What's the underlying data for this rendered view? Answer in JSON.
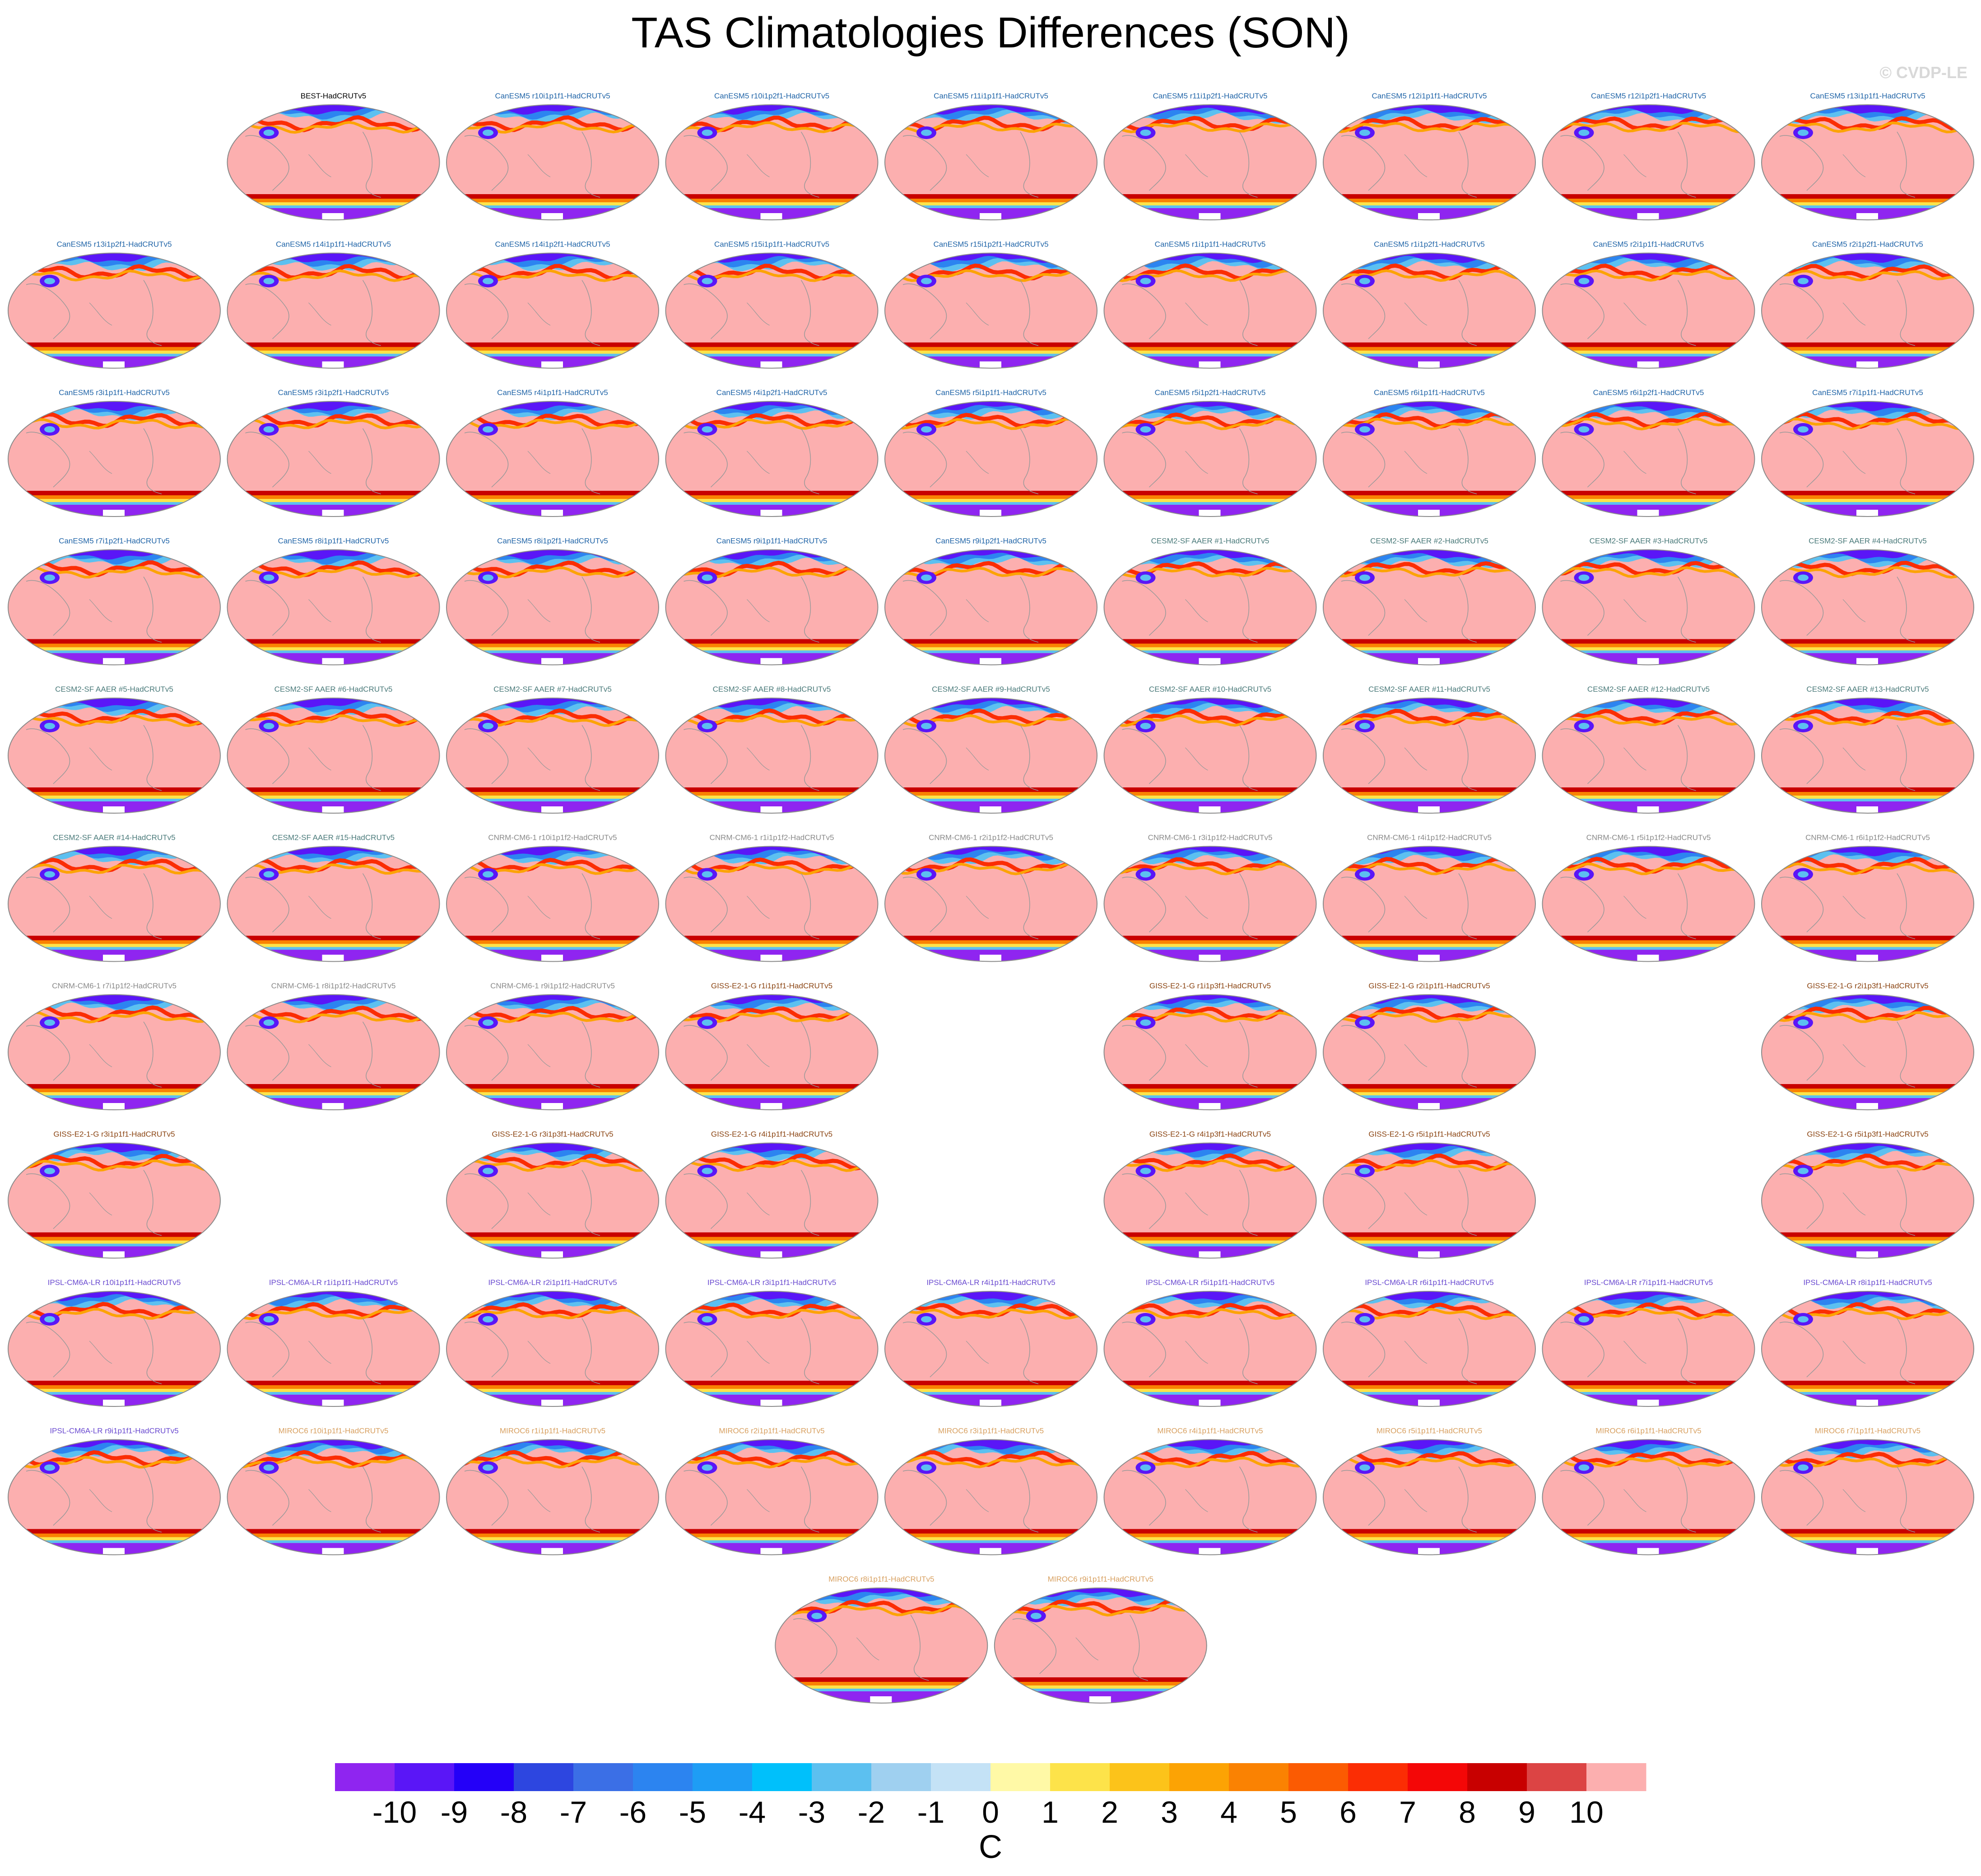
{
  "title": "TAS Climatologies Differences (SON)",
  "watermark": "© CVDP-LE",
  "chart_data": {
    "type": "heatmap",
    "title": "TAS Climatologies Differences (SON)",
    "description_kind": "small-multiple global maps (Robinson-like projection), one per model member minus observations",
    "colorbar": {
      "levels": [
        -10,
        -9,
        -8,
        -7,
        -6,
        -5,
        -4,
        -3,
        -2,
        -1,
        0,
        1,
        2,
        3,
        4,
        5,
        6,
        7,
        8,
        9,
        10
      ],
      "tick_labels": [
        "-10",
        "-9",
        "-8",
        "-7",
        "-6",
        "-5",
        "-4",
        "-3",
        "-2",
        "-1",
        "0",
        "1",
        "2",
        "3",
        "4",
        "5",
        "6",
        "7",
        "8",
        "9",
        "10"
      ],
      "colors": [
        "#8f25f0",
        "#5a16f7",
        "#2400f8",
        "#2d46e0",
        "#3b6fe6",
        "#2c84f0",
        "#1e9df5",
        "#00c0fb",
        "#5cc0f0",
        "#9fd0f0",
        "#c4e2f6",
        "#fff9a6",
        "#fde34a",
        "#fcc31a",
        "#fca304",
        "#fa8202",
        "#fb5b02",
        "#fb2d04",
        "#f40707",
        "#c80000",
        "#dc4444",
        "#fcafaf"
      ],
      "units": "C"
    },
    "panels": [
      {
        "label": "BEST-HadCRUTv5",
        "row": 0,
        "col": 1,
        "group": "BEST",
        "color": "#000000"
      },
      {
        "label": "CanESM5 r10i1p1f1-HadCRUTv5",
        "row": 0,
        "col": 2,
        "group": "CanESM5",
        "color": "#2165a8"
      },
      {
        "label": "CanESM5 r10i1p2f1-HadCRUTv5",
        "row": 0,
        "col": 3,
        "group": "CanESM5",
        "color": "#2165a8"
      },
      {
        "label": "CanESM5 r11i1p1f1-HadCRUTv5",
        "row": 0,
        "col": 4,
        "group": "CanESM5",
        "color": "#2165a8"
      },
      {
        "label": "CanESM5 r11i1p2f1-HadCRUTv5",
        "row": 0,
        "col": 5,
        "group": "CanESM5",
        "color": "#2165a8"
      },
      {
        "label": "CanESM5 r12i1p1f1-HadCRUTv5",
        "row": 0,
        "col": 6,
        "group": "CanESM5",
        "color": "#2165a8"
      },
      {
        "label": "CanESM5 r12i1p2f1-HadCRUTv5",
        "row": 0,
        "col": 7,
        "group": "CanESM5",
        "color": "#2165a8"
      },
      {
        "label": "CanESM5 r13i1p1f1-HadCRUTv5",
        "row": 0,
        "col": 8,
        "group": "CanESM5",
        "color": "#2165a8"
      },
      {
        "label": "CanESM5 r13i1p2f1-HadCRUTv5",
        "row": 1,
        "col": 0,
        "group": "CanESM5",
        "color": "#2165a8"
      },
      {
        "label": "CanESM5 r14i1p1f1-HadCRUTv5",
        "row": 1,
        "col": 1,
        "group": "CanESM5",
        "color": "#2165a8"
      },
      {
        "label": "CanESM5 r14i1p2f1-HadCRUTv5",
        "row": 1,
        "col": 2,
        "group": "CanESM5",
        "color": "#2165a8"
      },
      {
        "label": "CanESM5 r15i1p1f1-HadCRUTv5",
        "row": 1,
        "col": 3,
        "group": "CanESM5",
        "color": "#2165a8"
      },
      {
        "label": "CanESM5 r15i1p2f1-HadCRUTv5",
        "row": 1,
        "col": 4,
        "group": "CanESM5",
        "color": "#2165a8"
      },
      {
        "label": "CanESM5 r1i1p1f1-HadCRUTv5",
        "row": 1,
        "col": 5,
        "group": "CanESM5",
        "color": "#2165a8"
      },
      {
        "label": "CanESM5 r1i1p2f1-HadCRUTv5",
        "row": 1,
        "col": 6,
        "group": "CanESM5",
        "color": "#2165a8"
      },
      {
        "label": "CanESM5 r2i1p1f1-HadCRUTv5",
        "row": 1,
        "col": 7,
        "group": "CanESM5",
        "color": "#2165a8"
      },
      {
        "label": "CanESM5 r2i1p2f1-HadCRUTv5",
        "row": 1,
        "col": 8,
        "group": "CanESM5",
        "color": "#2165a8"
      },
      {
        "label": "CanESM5 r3i1p1f1-HadCRUTv5",
        "row": 2,
        "col": 0,
        "group": "CanESM5",
        "color": "#2165a8"
      },
      {
        "label": "CanESM5 r3i1p2f1-HadCRUTv5",
        "row": 2,
        "col": 1,
        "group": "CanESM5",
        "color": "#2165a8"
      },
      {
        "label": "CanESM5 r4i1p1f1-HadCRUTv5",
        "row": 2,
        "col": 2,
        "group": "CanESM5",
        "color": "#2165a8"
      },
      {
        "label": "CanESM5 r4i1p2f1-HadCRUTv5",
        "row": 2,
        "col": 3,
        "group": "CanESM5",
        "color": "#2165a8"
      },
      {
        "label": "CanESM5 r5i1p1f1-HadCRUTv5",
        "row": 2,
        "col": 4,
        "group": "CanESM5",
        "color": "#2165a8"
      },
      {
        "label": "CanESM5 r5i1p2f1-HadCRUTv5",
        "row": 2,
        "col": 5,
        "group": "CanESM5",
        "color": "#2165a8"
      },
      {
        "label": "CanESM5 r6i1p1f1-HadCRUTv5",
        "row": 2,
        "col": 6,
        "group": "CanESM5",
        "color": "#2165a8"
      },
      {
        "label": "CanESM5 r6i1p2f1-HadCRUTv5",
        "row": 2,
        "col": 7,
        "group": "CanESM5",
        "color": "#2165a8"
      },
      {
        "label": "CanESM5 r7i1p1f1-HadCRUTv5",
        "row": 2,
        "col": 8,
        "group": "CanESM5",
        "color": "#2165a8"
      },
      {
        "label": "CanESM5 r7i1p2f1-HadCRUTv5",
        "row": 3,
        "col": 0,
        "group": "CanESM5",
        "color": "#2165a8"
      },
      {
        "label": "CanESM5 r8i1p1f1-HadCRUTv5",
        "row": 3,
        "col": 1,
        "group": "CanESM5",
        "color": "#2165a8"
      },
      {
        "label": "CanESM5 r8i1p2f1-HadCRUTv5",
        "row": 3,
        "col": 2,
        "group": "CanESM5",
        "color": "#2165a8"
      },
      {
        "label": "CanESM5 r9i1p1f1-HadCRUTv5",
        "row": 3,
        "col": 3,
        "group": "CanESM5",
        "color": "#2165a8"
      },
      {
        "label": "CanESM5 r9i1p2f1-HadCRUTv5",
        "row": 3,
        "col": 4,
        "group": "CanESM5",
        "color": "#2165a8"
      },
      {
        "label": "CESM2-SF AAER #1-HadCRUTv5",
        "row": 3,
        "col": 5,
        "group": "CESM2-SF",
        "color": "#4a7a7a"
      },
      {
        "label": "CESM2-SF AAER #2-HadCRUTv5",
        "row": 3,
        "col": 6,
        "group": "CESM2-SF",
        "color": "#4a7a7a"
      },
      {
        "label": "CESM2-SF AAER #3-HadCRUTv5",
        "row": 3,
        "col": 7,
        "group": "CESM2-SF",
        "color": "#4a7a7a"
      },
      {
        "label": "CESM2-SF AAER #4-HadCRUTv5",
        "row": 3,
        "col": 8,
        "group": "CESM2-SF",
        "color": "#4a7a7a"
      },
      {
        "label": "CESM2-SF AAER #5-HadCRUTv5",
        "row": 4,
        "col": 0,
        "group": "CESM2-SF",
        "color": "#4a7a7a"
      },
      {
        "label": "CESM2-SF AAER #6-HadCRUTv5",
        "row": 4,
        "col": 1,
        "group": "CESM2-SF",
        "color": "#4a7a7a"
      },
      {
        "label": "CESM2-SF AAER #7-HadCRUTv5",
        "row": 4,
        "col": 2,
        "group": "CESM2-SF",
        "color": "#4a7a7a"
      },
      {
        "label": "CESM2-SF AAER #8-HadCRUTv5",
        "row": 4,
        "col": 3,
        "group": "CESM2-SF",
        "color": "#4a7a7a"
      },
      {
        "label": "CESM2-SF AAER #9-HadCRUTv5",
        "row": 4,
        "col": 4,
        "group": "CESM2-SF",
        "color": "#4a7a7a"
      },
      {
        "label": "CESM2-SF AAER #10-HadCRUTv5",
        "row": 4,
        "col": 5,
        "group": "CESM2-SF",
        "color": "#4a7a7a"
      },
      {
        "label": "CESM2-SF AAER #11-HadCRUTv5",
        "row": 4,
        "col": 6,
        "group": "CESM2-SF",
        "color": "#4a7a7a"
      },
      {
        "label": "CESM2-SF AAER #12-HadCRUTv5",
        "row": 4,
        "col": 7,
        "group": "CESM2-SF",
        "color": "#4a7a7a"
      },
      {
        "label": "CESM2-SF AAER #13-HadCRUTv5",
        "row": 4,
        "col": 8,
        "group": "CESM2-SF",
        "color": "#4a7a7a"
      },
      {
        "label": "CESM2-SF AAER #14-HadCRUTv5",
        "row": 5,
        "col": 0,
        "group": "CESM2-SF",
        "color": "#4a7a7a"
      },
      {
        "label": "CESM2-SF AAER #15-HadCRUTv5",
        "row": 5,
        "col": 1,
        "group": "CESM2-SF",
        "color": "#4a7a7a"
      },
      {
        "label": "CNRM-CM6-1 r10i1p1f2-HadCRUTv5",
        "row": 5,
        "col": 2,
        "group": "CNRM-CM6-1",
        "color": "#8a8a8a"
      },
      {
        "label": "CNRM-CM6-1 r1i1p1f2-HadCRUTv5",
        "row": 5,
        "col": 3,
        "group": "CNRM-CM6-1",
        "color": "#8a8a8a"
      },
      {
        "label": "CNRM-CM6-1 r2i1p1f2-HadCRUTv5",
        "row": 5,
        "col": 4,
        "group": "CNRM-CM6-1",
        "color": "#8a8a8a"
      },
      {
        "label": "CNRM-CM6-1 r3i1p1f2-HadCRUTv5",
        "row": 5,
        "col": 5,
        "group": "CNRM-CM6-1",
        "color": "#8a8a8a"
      },
      {
        "label": "CNRM-CM6-1 r4i1p1f2-HadCRUTv5",
        "row": 5,
        "col": 6,
        "group": "CNRM-CM6-1",
        "color": "#8a8a8a"
      },
      {
        "label": "CNRM-CM6-1 r5i1p1f2-HadCRUTv5",
        "row": 5,
        "col": 7,
        "group": "CNRM-CM6-1",
        "color": "#8a8a8a"
      },
      {
        "label": "CNRM-CM6-1 r6i1p1f2-HadCRUTv5",
        "row": 5,
        "col": 8,
        "group": "CNRM-CM6-1",
        "color": "#8a8a8a"
      },
      {
        "label": "CNRM-CM6-1 r7i1p1f2-HadCRUTv5",
        "row": 6,
        "col": 0,
        "group": "CNRM-CM6-1",
        "color": "#8a8a8a"
      },
      {
        "label": "CNRM-CM6-1 r8i1p1f2-HadCRUTv5",
        "row": 6,
        "col": 1,
        "group": "CNRM-CM6-1",
        "color": "#8a8a8a"
      },
      {
        "label": "CNRM-CM6-1 r9i1p1f2-HadCRUTv5",
        "row": 6,
        "col": 2,
        "group": "CNRM-CM6-1",
        "color": "#8a8a8a"
      },
      {
        "label": "GISS-E2-1-G r1i1p1f1-HadCRUTv5",
        "row": 6,
        "col": 3,
        "group": "GISS-E2-1-G",
        "color": "#8b4513"
      },
      {
        "label": "GISS-E2-1-G r1i1p3f1-HadCRUTv5",
        "row": 6,
        "col": 5,
        "group": "GISS-E2-1-G",
        "color": "#8b4513"
      },
      {
        "label": "GISS-E2-1-G r2i1p1f1-HadCRUTv5",
        "row": 6,
        "col": 6,
        "group": "GISS-E2-1-G",
        "color": "#8b4513"
      },
      {
        "label": "GISS-E2-1-G r2i1p3f1-HadCRUTv5",
        "row": 6,
        "col": 8,
        "group": "GISS-E2-1-G",
        "color": "#8b4513"
      },
      {
        "label": "GISS-E2-1-G r3i1p1f1-HadCRUTv5",
        "row": 7,
        "col": 0,
        "group": "GISS-E2-1-G",
        "color": "#8b4513"
      },
      {
        "label": "GISS-E2-1-G r3i1p3f1-HadCRUTv5",
        "row": 7,
        "col": 2,
        "group": "GISS-E2-1-G",
        "color": "#8b4513"
      },
      {
        "label": "GISS-E2-1-G r4i1p1f1-HadCRUTv5",
        "row": 7,
        "col": 3,
        "group": "GISS-E2-1-G",
        "color": "#8b4513"
      },
      {
        "label": "GISS-E2-1-G r4i1p3f1-HadCRUTv5",
        "row": 7,
        "col": 5,
        "group": "GISS-E2-1-G",
        "color": "#8b4513"
      },
      {
        "label": "GISS-E2-1-G r5i1p1f1-HadCRUTv5",
        "row": 7,
        "col": 6,
        "group": "GISS-E2-1-G",
        "color": "#8b4513"
      },
      {
        "label": "GISS-E2-1-G r5i1p3f1-HadCRUTv5",
        "row": 7,
        "col": 8,
        "group": "GISS-E2-1-G",
        "color": "#8b4513"
      },
      {
        "label": "IPSL-CM6A-LR r10i1p1f1-HadCRUTv5",
        "row": 8,
        "col": 0,
        "group": "IPSL-CM6A-LR",
        "color": "#6a4ad0"
      },
      {
        "label": "IPSL-CM6A-LR r1i1p1f1-HadCRUTv5",
        "row": 8,
        "col": 1,
        "group": "IPSL-CM6A-LR",
        "color": "#6a4ad0"
      },
      {
        "label": "IPSL-CM6A-LR r2i1p1f1-HadCRUTv5",
        "row": 8,
        "col": 2,
        "group": "IPSL-CM6A-LR",
        "color": "#6a4ad0"
      },
      {
        "label": "IPSL-CM6A-LR r3i1p1f1-HadCRUTv5",
        "row": 8,
        "col": 3,
        "group": "IPSL-CM6A-LR",
        "color": "#6a4ad0"
      },
      {
        "label": "IPSL-CM6A-LR r4i1p1f1-HadCRUTv5",
        "row": 8,
        "col": 4,
        "group": "IPSL-CM6A-LR",
        "color": "#6a4ad0"
      },
      {
        "label": "IPSL-CM6A-LR r5i1p1f1-HadCRUTv5",
        "row": 8,
        "col": 5,
        "group": "IPSL-CM6A-LR",
        "color": "#6a4ad0"
      },
      {
        "label": "IPSL-CM6A-LR r6i1p1f1-HadCRUTv5",
        "row": 8,
        "col": 6,
        "group": "IPSL-CM6A-LR",
        "color": "#6a4ad0"
      },
      {
        "label": "IPSL-CM6A-LR r7i1p1f1-HadCRUTv5",
        "row": 8,
        "col": 7,
        "group": "IPSL-CM6A-LR",
        "color": "#6a4ad0"
      },
      {
        "label": "IPSL-CM6A-LR r8i1p1f1-HadCRUTv5",
        "row": 8,
        "col": 8,
        "group": "IPSL-CM6A-LR",
        "color": "#6a4ad0"
      },
      {
        "label": "IPSL-CM6A-LR r9i1p1f1-HadCRUTv5",
        "row": 9,
        "col": 0,
        "group": "IPSL-CM6A-LR",
        "color": "#6a4ad0"
      },
      {
        "label": "MIROC6 r10i1p1f1-HadCRUTv5",
        "row": 9,
        "col": 1,
        "group": "MIROC6",
        "color": "#d8a060"
      },
      {
        "label": "MIROC6 r1i1p1f1-HadCRUTv5",
        "row": 9,
        "col": 2,
        "group": "MIROC6",
        "color": "#d8a060"
      },
      {
        "label": "MIROC6 r2i1p1f1-HadCRUTv5",
        "row": 9,
        "col": 3,
        "group": "MIROC6",
        "color": "#d8a060"
      },
      {
        "label": "MIROC6 r3i1p1f1-HadCRUTv5",
        "row": 9,
        "col": 4,
        "group": "MIROC6",
        "color": "#d8a060"
      },
      {
        "label": "MIROC6 r4i1p1f1-HadCRUTv5",
        "row": 9,
        "col": 5,
        "group": "MIROC6",
        "color": "#d8a060"
      },
      {
        "label": "MIROC6 r5i1p1f1-HadCRUTv5",
        "row": 9,
        "col": 6,
        "group": "MIROC6",
        "color": "#d8a060"
      },
      {
        "label": "MIROC6 r6i1p1f1-HadCRUTv5",
        "row": 9,
        "col": 7,
        "group": "MIROC6",
        "color": "#d8a060"
      },
      {
        "label": "MIROC6 r7i1p1f1-HadCRUTv5",
        "row": 9,
        "col": 8,
        "group": "MIROC6",
        "color": "#d8a060"
      },
      {
        "label": "MIROC6 r8i1p1f1-HadCRUTv5",
        "row": 10,
        "col": 3.5,
        "group": "MIROC6",
        "color": "#d8a060"
      },
      {
        "label": "MIROC6 r9i1p1f1-HadCRUTv5",
        "row": 10,
        "col": 4.5,
        "group": "MIROC6",
        "color": "#d8a060"
      }
    ]
  }
}
